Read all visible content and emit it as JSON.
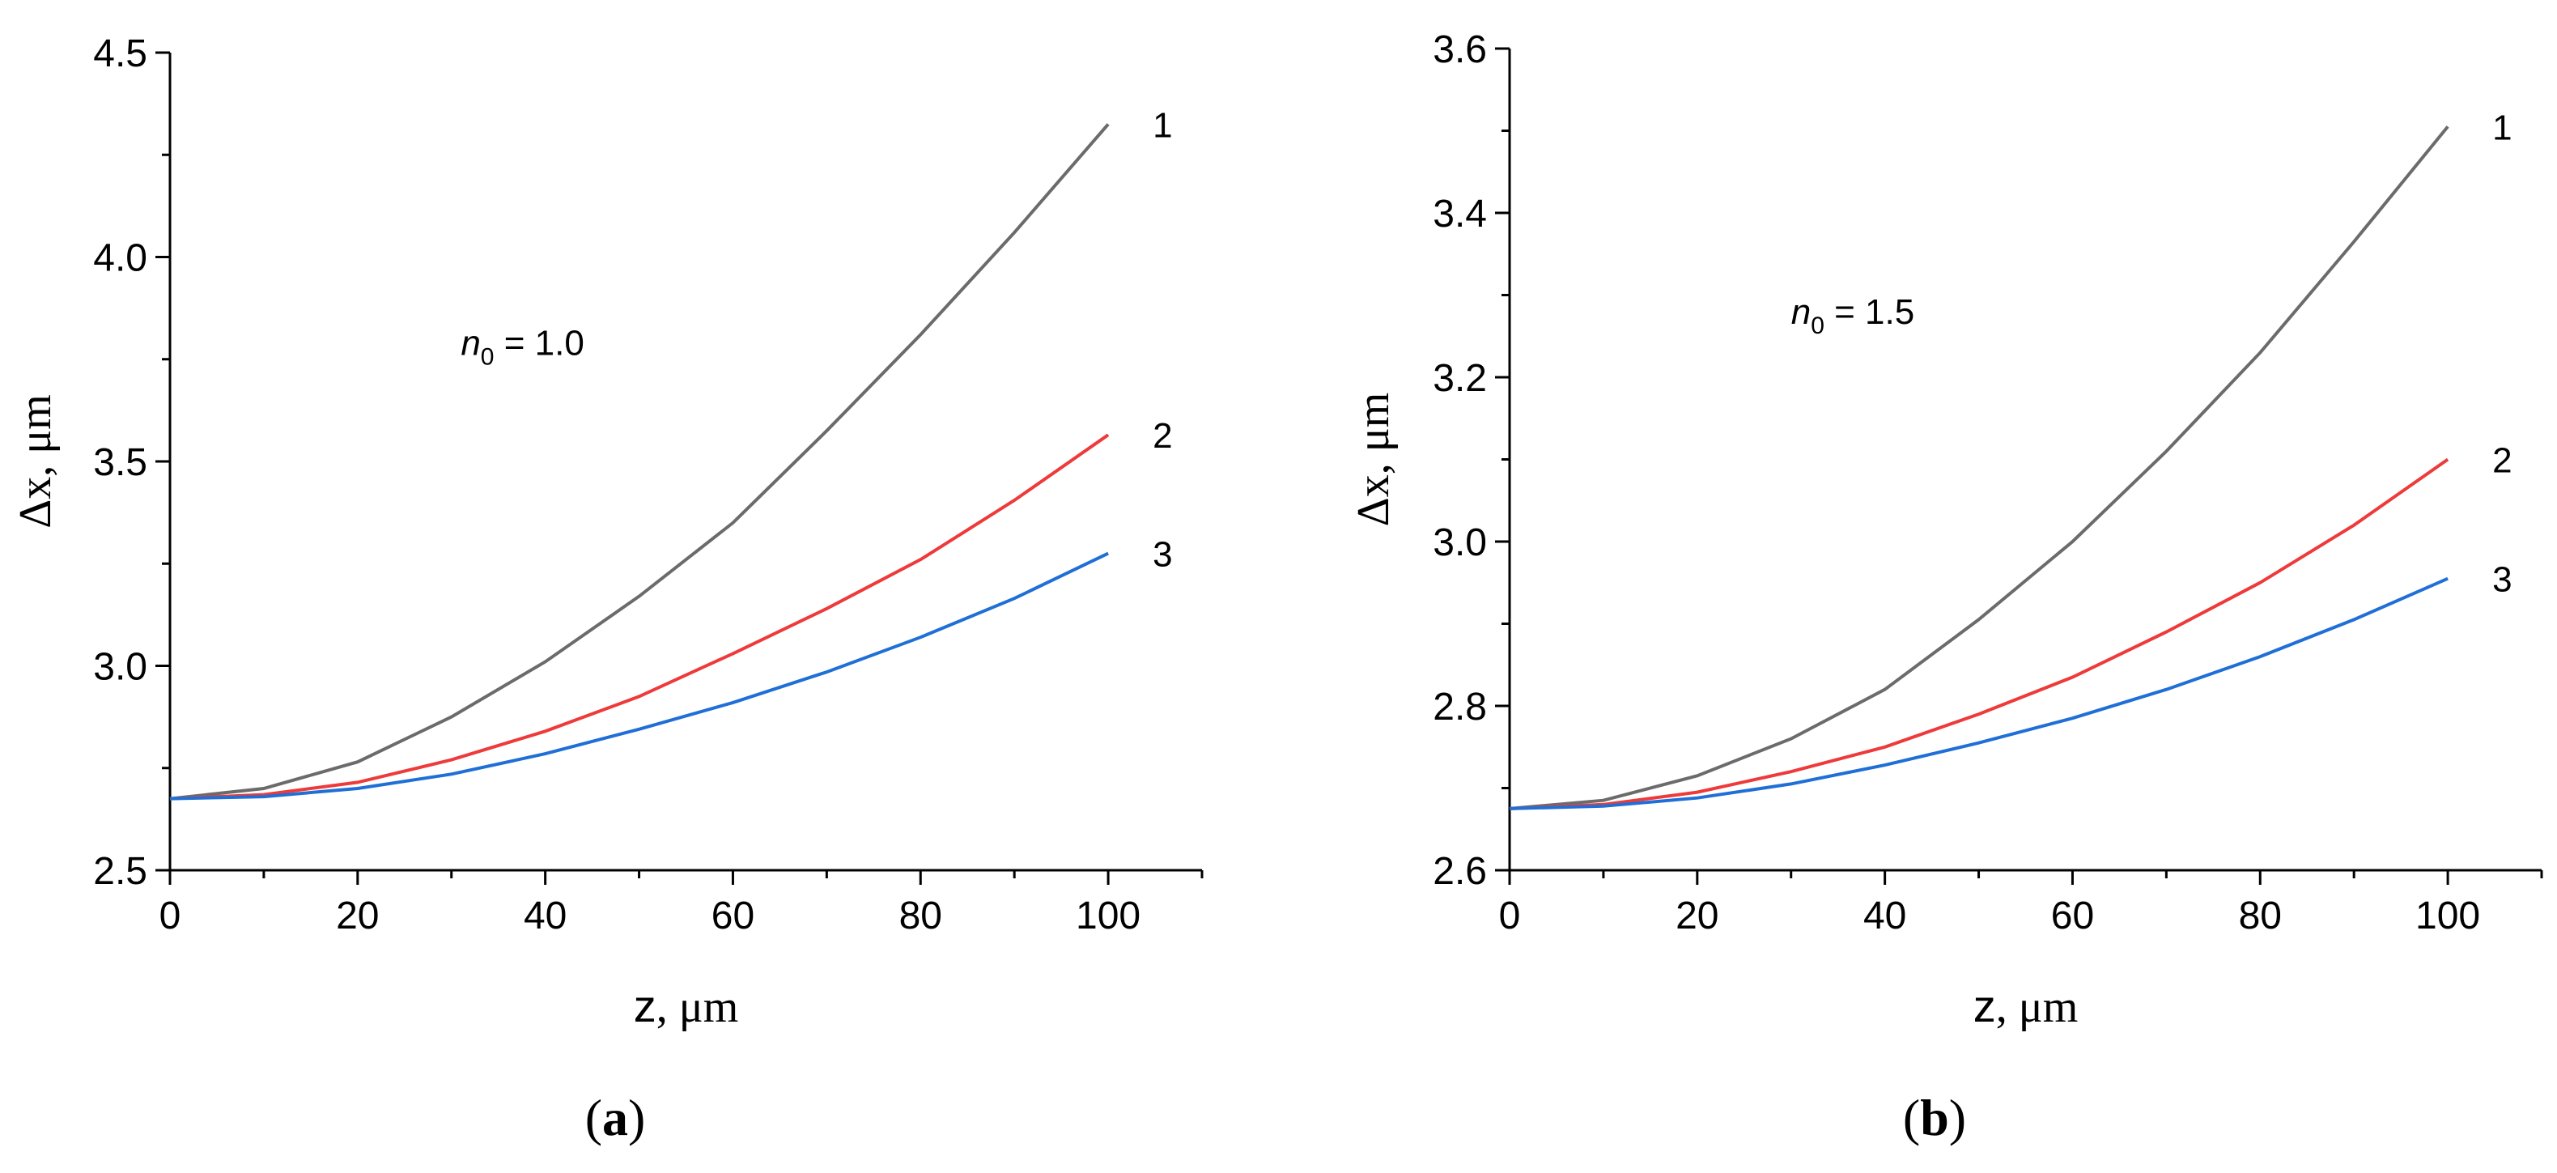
{
  "chart_data": [
    {
      "type": "line",
      "panel": "a",
      "caption_open": "(",
      "caption_letter": "a",
      "caption_close": ")",
      "xlabel_var": "z",
      "xlabel_unit": ", μm",
      "ylabel_var": "Δx",
      "ylabel_unit": ", μm",
      "xlim": [
        0,
        110
      ],
      "ylim": [
        2.5,
        4.5
      ],
      "x_ticks": [
        0,
        20,
        40,
        60,
        80,
        100
      ],
      "x_tick_labels": [
        "0",
        "20",
        "40",
        "60",
        "80",
        "100"
      ],
      "x_minor_ticks": [
        10,
        30,
        50,
        70,
        90,
        110
      ],
      "y_ticks": [
        2.5,
        3.0,
        3.5,
        4.0,
        4.5
      ],
      "y_tick_labels": [
        "2.5",
        "3.0",
        "3.5",
        "4.0",
        "4.5"
      ],
      "y_minor_ticks": [
        2.75,
        3.25,
        3.75,
        4.25
      ],
      "annotation": {
        "var": "n",
        "sub": "0",
        "text": " = 1.0",
        "x": 31,
        "y": 3.76
      },
      "series": [
        {
          "name": "1",
          "label": "1",
          "color": "#6b6b6b",
          "x": [
            0,
            10,
            20,
            30,
            40,
            50,
            60,
            70,
            80,
            90,
            100
          ],
          "y": [
            2.675,
            2.7,
            2.765,
            2.875,
            3.01,
            3.17,
            3.35,
            3.575,
            3.81,
            4.06,
            4.325
          ]
        },
        {
          "name": "2",
          "label": "2",
          "color": "#ee3a3a",
          "x": [
            0,
            10,
            20,
            30,
            40,
            50,
            60,
            70,
            80,
            90,
            100
          ],
          "y": [
            2.675,
            2.685,
            2.715,
            2.77,
            2.84,
            2.925,
            3.03,
            3.14,
            3.26,
            3.405,
            3.565
          ]
        },
        {
          "name": "3",
          "label": "3",
          "color": "#1f6fd6",
          "x": [
            0,
            10,
            20,
            30,
            40,
            50,
            60,
            70,
            80,
            90,
            100
          ],
          "y": [
            2.675,
            2.68,
            2.7,
            2.735,
            2.785,
            2.845,
            2.91,
            2.985,
            3.07,
            3.165,
            3.275
          ]
        }
      ]
    },
    {
      "type": "line",
      "panel": "b",
      "caption_open": "(",
      "caption_letter": "b",
      "caption_close": ")",
      "xlabel_var": "z",
      "xlabel_unit": ", μm",
      "ylabel_var": "Δx",
      "ylabel_unit": ", μm",
      "xlim": [
        0,
        110
      ],
      "ylim": [
        2.6,
        3.6
      ],
      "x_ticks": [
        0,
        20,
        40,
        60,
        80,
        100
      ],
      "x_tick_labels": [
        "0",
        "20",
        "40",
        "60",
        "80",
        "100"
      ],
      "x_minor_ticks": [
        10,
        30,
        50,
        70,
        90,
        110
      ],
      "y_ticks": [
        2.6,
        2.8,
        3.0,
        3.2,
        3.4,
        3.6
      ],
      "y_tick_labels": [
        "2.6",
        "2.8",
        "3.0",
        "3.2",
        "3.4",
        "3.6"
      ],
      "y_minor_ticks": [
        2.7,
        2.9,
        3.1,
        3.3,
        3.5
      ],
      "annotation": {
        "var": "n",
        "sub": "0",
        "text": " = 1.5",
        "x": 30,
        "y": 3.265
      },
      "series": [
        {
          "name": "1",
          "label": "1",
          "color": "#6b6b6b",
          "x": [
            0,
            10,
            20,
            30,
            40,
            50,
            60,
            70,
            80,
            90,
            100
          ],
          "y": [
            2.675,
            2.685,
            2.715,
            2.76,
            2.82,
            2.905,
            3.0,
            3.11,
            3.23,
            3.365,
            3.505
          ]
        },
        {
          "name": "2",
          "label": "2",
          "color": "#ee3a3a",
          "x": [
            0,
            10,
            20,
            30,
            40,
            50,
            60,
            70,
            80,
            90,
            100
          ],
          "y": [
            2.675,
            2.68,
            2.695,
            2.72,
            2.75,
            2.79,
            2.835,
            2.89,
            2.95,
            3.02,
            3.1
          ]
        },
        {
          "name": "3",
          "label": "3",
          "color": "#1f6fd6",
          "x": [
            0,
            10,
            20,
            30,
            40,
            50,
            60,
            70,
            80,
            90,
            100
          ],
          "y": [
            2.675,
            2.678,
            2.688,
            2.705,
            2.728,
            2.755,
            2.785,
            2.82,
            2.86,
            2.905,
            2.955
          ]
        }
      ]
    }
  ]
}
